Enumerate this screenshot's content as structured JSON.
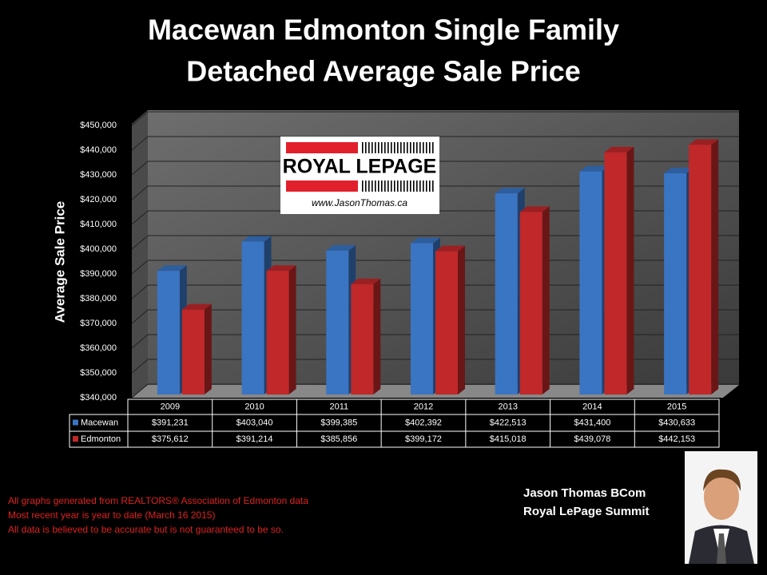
{
  "chart_data": {
    "type": "bar",
    "title": "Macewan Edmonton Single Family",
    "subtitle": "Detached Average Sale Price",
    "y_label": "Average Sale Price",
    "categories": [
      "2009",
      "2010",
      "2011",
      "2012",
      "2013",
      "2014",
      "2015"
    ],
    "series": [
      {
        "name": "Macewan",
        "color": "#3a75c4",
        "values": [
          391231,
          403040,
          399385,
          402392,
          422513,
          431400,
          430633
        ],
        "value_labels": [
          "$391,231",
          "$403,040",
          "$399,385",
          "$402,392",
          "$422,513",
          "$431,400",
          "$430,633"
        ]
      },
      {
        "name": "Edmonton",
        "color": "#c0282a",
        "values": [
          375612,
          391214,
          385856,
          399172,
          415018,
          439078,
          442153
        ],
        "value_labels": [
          "$375,612",
          "$391,214",
          "$385,856",
          "$399,172",
          "$415,018",
          "$439,078",
          "$442,153"
        ]
      }
    ],
    "ylim": [
      340000,
      450000
    ],
    "yticks": [
      {
        "value": 340000,
        "label": "$340,000"
      },
      {
        "value": 350000,
        "label": "$350,000"
      },
      {
        "value": 360000,
        "label": "$360,000"
      },
      {
        "value": 370000,
        "label": "$370,000"
      },
      {
        "value": 380000,
        "label": "$380,000"
      },
      {
        "value": 390000,
        "label": "$390,000"
      },
      {
        "value": 400000,
        "label": "$400,000"
      },
      {
        "value": 410000,
        "label": "$410,000"
      },
      {
        "value": 420000,
        "label": "$420,000"
      },
      {
        "value": 430000,
        "label": "$430,000"
      },
      {
        "value": 440000,
        "label": "$440,000"
      },
      {
        "value": 450000,
        "label": "$450,000"
      }
    ],
    "grid": true
  },
  "logo": {
    "brand": "ROYAL LEPAGE",
    "url": "www.JasonThomas.ca"
  },
  "notes": [
    "All graphs generated from REALTORS® Association of Edmonton data",
    "Most recent year is year to date (March 16  2015)",
    "All data is believed to be accurate but is not guaranteed to be so."
  ],
  "author": {
    "name": "Jason Thomas BCom",
    "company": "Royal LePage Summit"
  }
}
